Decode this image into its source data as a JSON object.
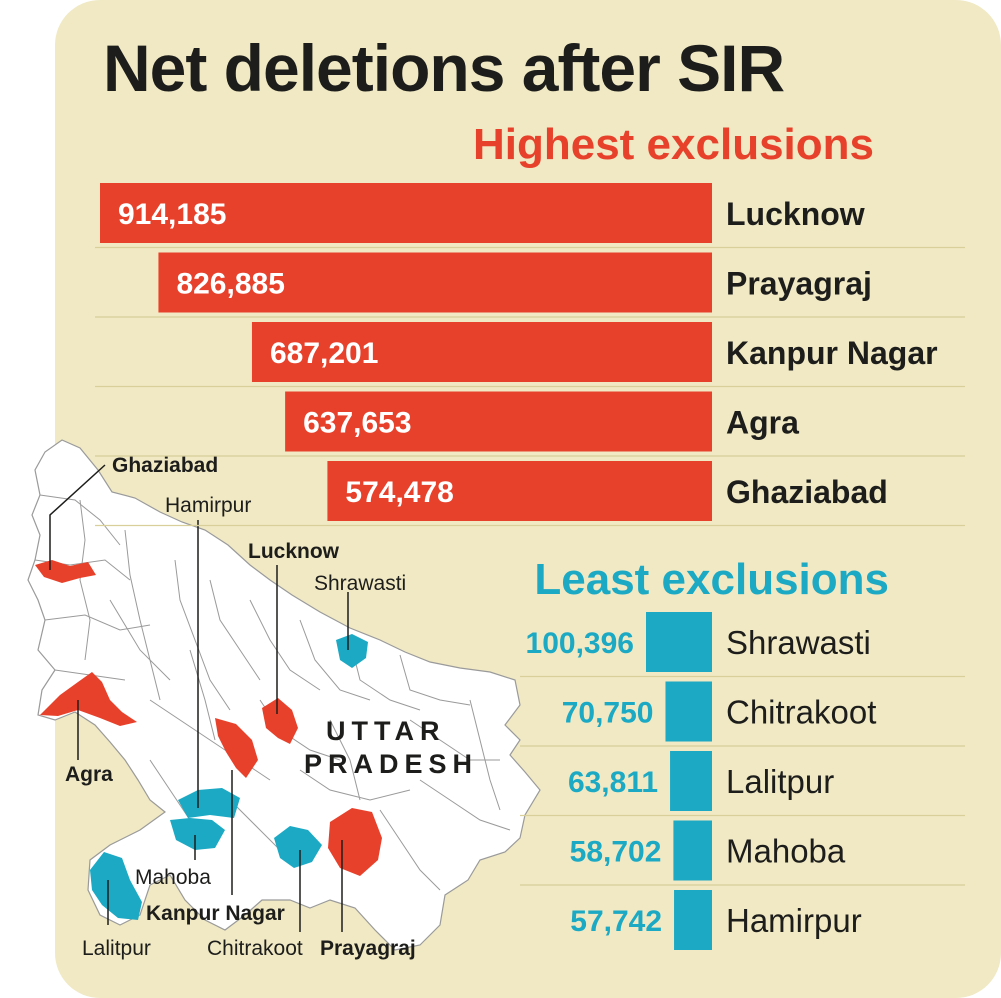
{
  "title": "Net deletions after SIR",
  "chart_data": [
    {
      "type": "bar",
      "title": "Highest exclusions",
      "categories": [
        "Lucknow",
        "Prayagraj",
        "Kanpur Nagar",
        "Agra",
        "Ghaziabad"
      ],
      "values": [
        914185,
        826885,
        687201,
        637653,
        574478
      ],
      "value_labels": [
        "914,185",
        "826,885",
        "687,201",
        "637,653",
        "574,478"
      ],
      "color": "#e8412b"
    },
    {
      "type": "bar",
      "title": "Least exclusions",
      "categories": [
        "Shrawasti",
        "Chitrakoot",
        "Lalitpur",
        "Mahoba",
        "Hamirpur"
      ],
      "values": [
        100396,
        70750,
        63811,
        58702,
        57742
      ],
      "value_labels": [
        "100,396",
        "70,750",
        "63,811",
        "58,702",
        "57,742"
      ],
      "color": "#1ba9c4"
    }
  ],
  "map": {
    "state_label_line1": "UTTAR",
    "state_label_line2": "PRADESH",
    "district_labels": [
      "Ghaziabad",
      "Hamirpur",
      "Lucknow",
      "Shrawasti",
      "Agra",
      "Mahoba",
      "Kanpur Nagar",
      "Lalitpur",
      "Chitrakoot",
      "Prayagraj"
    ],
    "highlight_high_color": "#e8412b",
    "highlight_low_color": "#1ba9c4",
    "district_fill": "#ffffff"
  }
}
